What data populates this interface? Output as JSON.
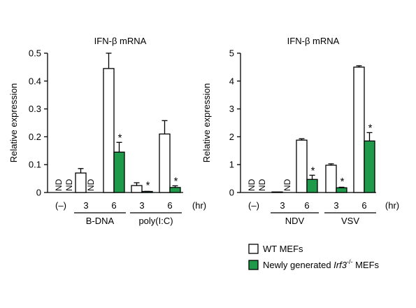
{
  "colors": {
    "wt": "#ffffff",
    "ko": "#1f9a4a",
    "stroke": "#000000"
  },
  "chart_data": [
    {
      "type": "bar",
      "title": "IFN-β mRNA",
      "ylabel": "Relative expression",
      "ylim": [
        0,
        0.5
      ],
      "yticks": [
        "0",
        "0.1",
        "0.2",
        "0.3",
        "0.4",
        "0.5"
      ],
      "x_unit": "(hr)",
      "control_label": "(–)",
      "time_labels": [
        "3",
        "6",
        "3",
        "6"
      ],
      "group_labels": [
        "B-DNA",
        "poly(I:C)"
      ],
      "nd_label": "ND",
      "star_label": "*",
      "series": [
        {
          "name": "WT MEFs",
          "values": [
            0,
            0.07,
            0.445,
            0.025,
            0.21
          ],
          "errors": [
            0,
            0.016,
            0.055,
            0.01,
            0.048
          ],
          "nd": [
            true,
            false,
            false,
            false,
            false
          ]
        },
        {
          "name": "Newly generated Irf3-/- MEFs",
          "values": [
            0,
            0,
            0.145,
            0.003,
            0.018
          ],
          "errors": [
            0,
            0,
            0.035,
            0.001,
            0.006
          ],
          "nd": [
            true,
            true,
            false,
            false,
            false
          ],
          "significant": [
            false,
            false,
            true,
            true,
            true
          ]
        }
      ]
    },
    {
      "type": "bar",
      "title": "IFN-β mRNA",
      "ylabel": "Relative expression",
      "ylim": [
        0,
        5
      ],
      "yticks": [
        "0",
        "1",
        "2",
        "3",
        "4",
        "5"
      ],
      "x_unit": "(hr)",
      "control_label": "(–)",
      "time_labels": [
        "3",
        "6",
        "3",
        "6"
      ],
      "group_labels": [
        "NDV",
        "VSV"
      ],
      "nd_label": "ND",
      "star_label": "*",
      "series": [
        {
          "name": "WT MEFs",
          "values": [
            0,
            0.02,
            1.88,
            0.98,
            4.5
          ],
          "errors": [
            0,
            0,
            0.05,
            0.05,
            0.05
          ],
          "nd": [
            true,
            false,
            false,
            false,
            false
          ]
        },
        {
          "name": "Newly generated Irf3-/- MEFs",
          "values": [
            0,
            0,
            0.47,
            0.17,
            1.85
          ],
          "errors": [
            0,
            0,
            0.15,
            0.02,
            0.3
          ],
          "nd": [
            true,
            true,
            false,
            false,
            false
          ],
          "significant": [
            false,
            false,
            true,
            true,
            true
          ]
        }
      ]
    }
  ],
  "legend": {
    "wt_label": "WT MEFs",
    "ko_prefix": "Newly generated ",
    "ko_gene": "Irf3",
    "ko_sup": "-/-",
    "ko_suffix": " MEFs"
  }
}
